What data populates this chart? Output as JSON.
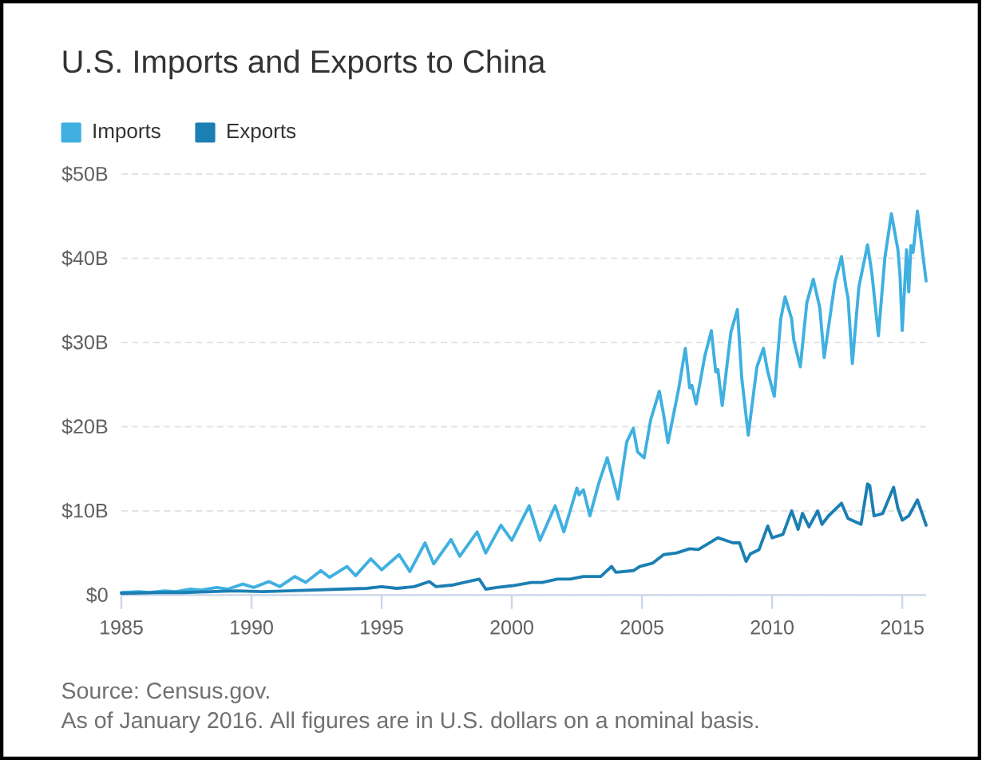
{
  "chart_data": {
    "type": "line",
    "title": "U.S. Imports and Exports to China",
    "xlim": [
      "1985-01",
      "2015-12"
    ],
    "xticks": [
      "1985",
      "1990",
      "1995",
      "2000",
      "2005",
      "2010",
      "2015"
    ],
    "ylim": [
      0,
      50
    ],
    "yticks": [
      {
        "value": 0,
        "label": "$0"
      },
      {
        "value": 10,
        "label": "$10B"
      },
      {
        "value": 20,
        "label": "$20B"
      },
      {
        "value": 30,
        "label": "$30B"
      },
      {
        "value": 40,
        "label": "$40B"
      },
      {
        "value": 50,
        "label": "$50B"
      }
    ],
    "grid": "y",
    "legend": "top left",
    "series": [
      {
        "name": "Imports",
        "color": "#3fb0e0",
        "x": [
          "1985-01",
          "1985-09",
          "1986-02",
          "1986-09",
          "1987-02",
          "1987-09",
          "1988-02",
          "1988-09",
          "1989-02",
          "1989-09",
          "1990-02",
          "1990-09",
          "1991-02",
          "1991-09",
          "1992-02",
          "1992-09",
          "1993-01",
          "1993-09",
          "1994-01",
          "1994-08",
          "1995-01",
          "1995-09",
          "1996-02",
          "1996-09",
          "1997-01",
          "1997-09",
          "1998-01",
          "1998-09",
          "1999-01",
          "1999-08",
          "2000-01",
          "2000-09",
          "2001-02",
          "2001-09",
          "2002-01",
          "2002-07",
          "2002-08",
          "2002-10",
          "2003-01",
          "2003-05",
          "2003-09",
          "2004-02",
          "2004-06",
          "2004-09",
          "2004-11",
          "2005-02",
          "2005-05",
          "2005-09",
          "2005-11",
          "2006-01",
          "2006-06",
          "2006-09",
          "2006-11",
          "2006-12",
          "2007-02",
          "2007-06",
          "2007-09",
          "2007-11",
          "2007-12",
          "2008-02",
          "2008-06",
          "2008-09",
          "2008-11",
          "2009-02",
          "2009-06",
          "2009-09",
          "2009-11",
          "2010-02",
          "2010-05",
          "2010-07",
          "2010-10",
          "2010-11",
          "2011-02",
          "2011-05",
          "2011-08",
          "2011-11",
          "2012-01",
          "2012-06",
          "2012-09",
          "2012-11",
          "2012-12",
          "2013-02",
          "2013-05",
          "2013-09",
          "2013-11",
          "2014-02",
          "2014-05",
          "2014-08",
          "2014-11",
          "2014-12",
          "2015-01",
          "2015-03",
          "2015-04",
          "2015-05",
          "2015-06",
          "2015-08",
          "2015-12"
        ],
        "values": [
          0.3,
          0.4,
          0.3,
          0.5,
          0.4,
          0.7,
          0.6,
          0.9,
          0.7,
          1.3,
          0.9,
          1.6,
          1.0,
          2.2,
          1.5,
          2.9,
          2.1,
          3.4,
          2.3,
          4.3,
          3.0,
          4.8,
          2.8,
          6.2,
          3.7,
          6.6,
          4.6,
          7.5,
          5.0,
          8.3,
          6.5,
          10.6,
          6.5,
          10.6,
          7.5,
          12.7,
          11.9,
          12.5,
          9.4,
          13.2,
          16.3,
          11.4,
          18.2,
          19.8,
          17.0,
          16.3,
          20.8,
          24.2,
          21.4,
          18.1,
          24.6,
          29.3,
          24.6,
          24.9,
          22.7,
          28.4,
          31.4,
          26.5,
          26.8,
          22.5,
          31.2,
          33.9,
          25.8,
          19.0,
          27.1,
          29.3,
          26.5,
          23.6,
          32.8,
          35.4,
          32.8,
          30.3,
          27.1,
          34.7,
          37.5,
          34.1,
          28.2,
          37.2,
          40.2,
          36.6,
          35.3,
          27.5,
          36.6,
          41.6,
          38.2,
          30.8,
          40.1,
          45.3,
          41.0,
          37.8,
          31.4,
          41.0,
          36.0,
          41.5,
          40.7,
          45.6,
          37.3
        ]
      },
      {
        "name": "Exports",
        "color": "#1b7fb3",
        "x": [
          "1985-01",
          "1986-06",
          "1987-06",
          "1988-06",
          "1989-06",
          "1990-06",
          "1991-06",
          "1992-06",
          "1993-06",
          "1994-06",
          "1995-01",
          "1995-08",
          "1996-04",
          "1996-11",
          "1997-02",
          "1997-10",
          "1998-10",
          "1999-01",
          "1999-06",
          "2000-01",
          "2000-10",
          "2001-03",
          "2001-10",
          "2002-04",
          "2002-10",
          "2003-06",
          "2003-11",
          "2004-01",
          "2004-09",
          "2004-12",
          "2005-06",
          "2005-11",
          "2006-05",
          "2006-11",
          "2007-03",
          "2007-12",
          "2008-07",
          "2008-10",
          "2009-01",
          "2009-03",
          "2009-07",
          "2009-11",
          "2010-01",
          "2010-06",
          "2010-10",
          "2011-01",
          "2011-03",
          "2011-06",
          "2011-10",
          "2011-12",
          "2012-03",
          "2012-09",
          "2012-12",
          "2013-06",
          "2013-09",
          "2013-10",
          "2013-12",
          "2014-04",
          "2014-09",
          "2014-11",
          "2015-01",
          "2015-04",
          "2015-08",
          "2015-12"
        ],
        "values": [
          0.2,
          0.3,
          0.3,
          0.4,
          0.5,
          0.4,
          0.5,
          0.6,
          0.7,
          0.8,
          1.0,
          0.8,
          1.0,
          1.6,
          1.0,
          1.2,
          1.9,
          0.7,
          0.9,
          1.1,
          1.5,
          1.5,
          1.9,
          1.9,
          2.2,
          2.2,
          3.4,
          2.7,
          2.9,
          3.4,
          3.8,
          4.8,
          5.0,
          5.5,
          5.4,
          6.8,
          6.2,
          6.2,
          4.0,
          4.9,
          5.4,
          8.2,
          6.8,
          7.2,
          10.0,
          7.8,
          9.7,
          8.1,
          10.0,
          8.4,
          9.4,
          10.9,
          9.1,
          8.4,
          13.2,
          13.0,
          9.4,
          9.7,
          12.8,
          10.3,
          8.9,
          9.4,
          11.3,
          8.3
        ]
      }
    ],
    "annotations": [
      "Source: Census.gov.",
      "As of January 2016. All figures are in U.S. dollars on a nominal basis."
    ]
  }
}
